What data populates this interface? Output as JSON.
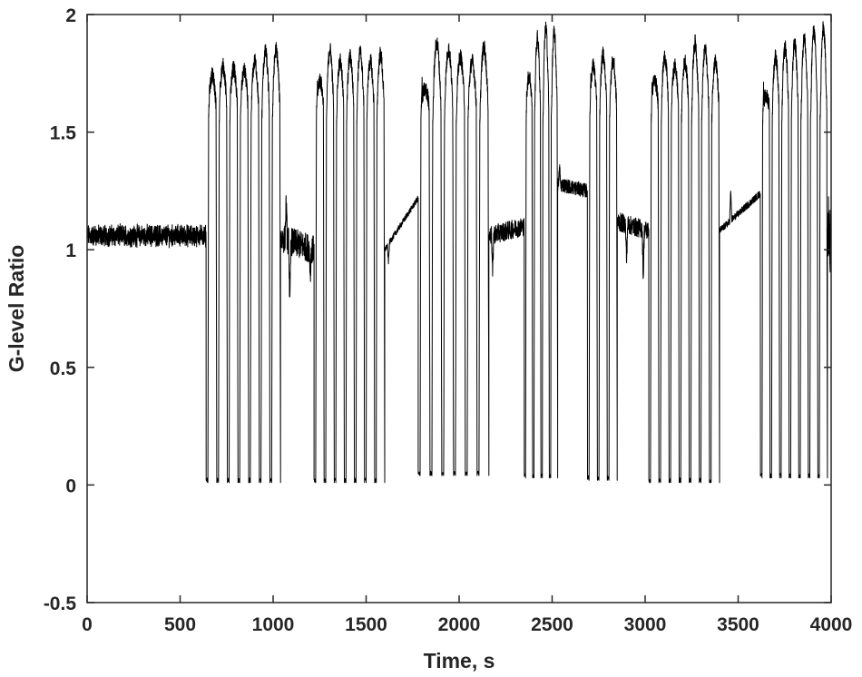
{
  "chart_data": {
    "type": "line",
    "title": "",
    "xlabel": "Time, s",
    "ylabel": "G-level Ratio",
    "xlim": [
      0,
      4000
    ],
    "ylim": [
      -0.5,
      2
    ],
    "xticks": [
      0,
      500,
      1000,
      1500,
      2000,
      2500,
      3000,
      3500,
      4000
    ],
    "xtick_labels": [
      "0",
      "500",
      "1000",
      "1500",
      "2000",
      "2500",
      "3000",
      "3500",
      "4000"
    ],
    "yticks": [
      -0.5,
      0,
      0.5,
      1,
      1.5,
      2
    ],
    "ytick_labels": [
      "-0.5",
      "0",
      "0.5",
      "1",
      "1.5",
      "2"
    ],
    "grid": false,
    "legend": false,
    "colors": {
      "line": "#000000",
      "axes": "#262626"
    },
    "series": [
      {
        "name": "",
        "segments": [
          {
            "kind": "steady",
            "x": [
              0,
              640
            ],
            "level": 1.06,
            "noise": 0.035
          },
          {
            "kind": "parabolas",
            "x": [
              640,
              1040
            ],
            "peaks": [
              1.74,
              1.78,
              1.77,
              1.76,
              1.8,
              1.84,
              1.85
            ],
            "trough": 0.01
          },
          {
            "kind": "transition",
            "x": [
              1040,
              1220
            ],
            "level_start": 1.05,
            "level_end": 1.0,
            "noise": 0.06,
            "spikes": [
              [
                1070,
                1.2
              ],
              [
                1090,
                0.75
              ],
              [
                1200,
                0.9
              ]
            ]
          },
          {
            "kind": "parabolas",
            "x": [
              1220,
              1600
            ],
            "peaks": [
              1.72,
              1.85,
              1.8,
              1.82,
              1.84,
              1.8,
              1.83
            ],
            "trough": 0.01
          },
          {
            "kind": "transition",
            "x": [
              1600,
              1780
            ],
            "level_start": 1.0,
            "level_end": 1.22,
            "noise": 0.012,
            "spikes": [
              [
                1620,
                0.95
              ]
            ]
          },
          {
            "kind": "parabolas",
            "x": [
              1780,
              2160
            ],
            "peaks": [
              1.68,
              1.88,
              1.85,
              1.82,
              1.8,
              1.86
            ],
            "trough": 0.04
          },
          {
            "kind": "transition",
            "x": [
              2160,
              2350
            ],
            "level_start": 1.06,
            "level_end": 1.1,
            "noise": 0.04,
            "spikes": [
              [
                2180,
                0.9
              ]
            ]
          },
          {
            "kind": "parabolas",
            "x": [
              2350,
              2530
            ],
            "peaks": [
              1.74,
              1.9,
              1.94,
              1.92
            ],
            "trough": 0.03
          },
          {
            "kind": "transition",
            "x": [
              2530,
              2690
            ],
            "level_start": 1.28,
            "level_end": 1.25,
            "noise": 0.03,
            "spikes": [
              [
                2540,
                1.35
              ]
            ]
          },
          {
            "kind": "parabolas",
            "x": [
              2690,
              2850
            ],
            "peaks": [
              1.78,
              1.83,
              1.8
            ],
            "trough": 0.02
          },
          {
            "kind": "transition",
            "x": [
              2850,
              3020
            ],
            "level_start": 1.12,
            "level_end": 1.08,
            "noise": 0.04,
            "spikes": [
              [
                2900,
                0.95
              ],
              [
                2990,
                0.88
              ]
            ]
          },
          {
            "kind": "parabolas",
            "x": [
              3020,
              3400
            ],
            "peaks": [
              1.72,
              1.82,
              1.78,
              1.8,
              1.88,
              1.85,
              1.8
            ],
            "trough": 0.01
          },
          {
            "kind": "transition",
            "x": [
              3400,
              3620
            ],
            "level_start": 1.08,
            "level_end": 1.24,
            "noise": 0.015,
            "spikes": [
              [
                3460,
                1.25
              ]
            ]
          },
          {
            "kind": "parabolas",
            "x": [
              3620,
              3980
            ],
            "peaks": [
              1.65,
              1.82,
              1.86,
              1.88,
              1.9,
              1.93,
              1.94
            ],
            "trough": 0.03
          },
          {
            "kind": "steady",
            "x": [
              3980,
              4010
            ],
            "level": 1.05,
            "noise": 0.12
          }
        ]
      }
    ]
  }
}
